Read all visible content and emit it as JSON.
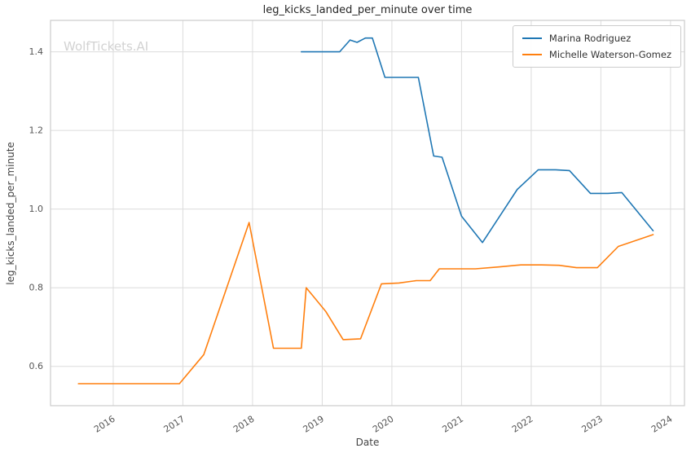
{
  "watermark": "WolfTickets.AI",
  "chart_data": {
    "type": "line",
    "title": "leg_kicks_landed_per_minute over time",
    "xlabel": "Date",
    "ylabel": "leg_kicks_landed_per_minute",
    "xlim": [
      2015.1,
      2024.2
    ],
    "ylim": [
      0.5,
      1.48
    ],
    "grid": true,
    "legend_position": "upper right",
    "xtick_values": [
      2016,
      2017,
      2018,
      2019,
      2020,
      2021,
      2022,
      2023,
      2024
    ],
    "xtick_labels": [
      "2016",
      "2017",
      "2018",
      "2019",
      "2020",
      "2021",
      "2022",
      "2023",
      "2024"
    ],
    "ytick_values": [
      0.6,
      0.8,
      1.0,
      1.2,
      1.4
    ],
    "ytick_labels": [
      "0.6",
      "0.8",
      "1.0",
      "1.2",
      "1.4"
    ],
    "series": [
      {
        "name": "Marina Rodriguez",
        "color": "#1f77b4",
        "points": [
          [
            2018.7,
            1.4
          ],
          [
            2019.0,
            1.4
          ],
          [
            2019.25,
            1.4
          ],
          [
            2019.4,
            1.43
          ],
          [
            2019.5,
            1.424
          ],
          [
            2019.62,
            1.435
          ],
          [
            2019.72,
            1.435
          ],
          [
            2019.9,
            1.335
          ],
          [
            2020.15,
            1.335
          ],
          [
            2020.38,
            1.335
          ],
          [
            2020.6,
            1.135
          ],
          [
            2020.72,
            1.132
          ],
          [
            2021.0,
            0.982
          ],
          [
            2021.3,
            0.915
          ],
          [
            2021.8,
            1.05
          ],
          [
            2022.1,
            1.1
          ],
          [
            2022.35,
            1.1
          ],
          [
            2022.55,
            1.098
          ],
          [
            2022.85,
            1.04
          ],
          [
            2023.1,
            1.04
          ],
          [
            2023.3,
            1.042
          ],
          [
            2023.75,
            0.945
          ]
        ]
      },
      {
        "name": "Michelle Waterson-Gomez",
        "color": "#ff7f0e",
        "points": [
          [
            2015.5,
            0.556
          ],
          [
            2016.1,
            0.556
          ],
          [
            2016.6,
            0.556
          ],
          [
            2016.95,
            0.556
          ],
          [
            2017.3,
            0.63
          ],
          [
            2017.95,
            0.966
          ],
          [
            2018.3,
            0.646
          ],
          [
            2018.55,
            0.646
          ],
          [
            2018.7,
            0.646
          ],
          [
            2018.77,
            0.8
          ],
          [
            2019.05,
            0.74
          ],
          [
            2019.3,
            0.668
          ],
          [
            2019.55,
            0.67
          ],
          [
            2019.85,
            0.81
          ],
          [
            2020.1,
            0.812
          ],
          [
            2020.35,
            0.818
          ],
          [
            2020.55,
            0.818
          ],
          [
            2020.68,
            0.848
          ],
          [
            2020.95,
            0.848
          ],
          [
            2021.2,
            0.848
          ],
          [
            2021.55,
            0.853
          ],
          [
            2021.85,
            0.858
          ],
          [
            2022.15,
            0.858
          ],
          [
            2022.4,
            0.857
          ],
          [
            2022.65,
            0.851
          ],
          [
            2022.95,
            0.851
          ],
          [
            2023.25,
            0.905
          ],
          [
            2023.75,
            0.935
          ]
        ]
      }
    ]
  }
}
